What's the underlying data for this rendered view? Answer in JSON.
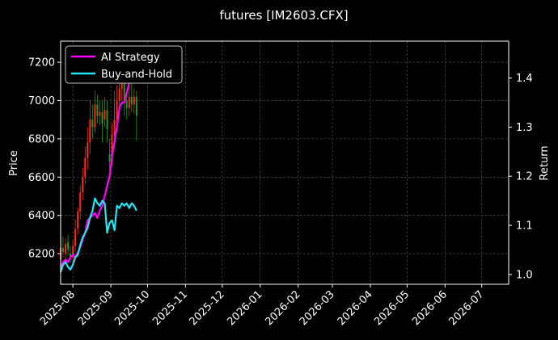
{
  "chart_data": {
    "type": "line",
    "title": "futures [IM2603.CFX]",
    "ylabel_left": "Price",
    "ylabel_right": "Return",
    "x_ticks": [
      "2025-08",
      "2025-09",
      "2025-10",
      "2025-11",
      "2025-12",
      "2026-01",
      "2026-02",
      "2026-03",
      "2026-04",
      "2026-05",
      "2026-06",
      "2026-07"
    ],
    "x_range": [
      "2025-07-22",
      "2026-07-23"
    ],
    "left_ticks": [
      6200,
      6400,
      6600,
      6800,
      7000,
      7200
    ],
    "left_ylim": [
      6040,
      7310
    ],
    "right_ticks": [
      "1.0",
      "1.1",
      "1.2",
      "1.3",
      "1.4"
    ],
    "right_ylim": [
      0.98,
      1.475
    ],
    "grid": true,
    "legend_position": "top-left",
    "colors": {
      "background": "#000000",
      "ai_strategy": "#ff00ff",
      "buy_and_hold": "#22e5f2",
      "candle_up": "#ff2a1a",
      "candle_down": "#1f9a1f",
      "grid": "#555555"
    },
    "legend": [
      {
        "label": "AI Strategy",
        "color": "#ff00ff"
      },
      {
        "label": "Buy-and-Hold",
        "color": "#22e5f2"
      }
    ],
    "series": [
      {
        "name": "AI Strategy",
        "axis": "right",
        "dates": [
          "2025-07-22",
          "2025-07-24",
          "2025-07-26",
          "2025-07-28",
          "2025-07-30",
          "2025-08-01",
          "2025-08-03",
          "2025-08-05",
          "2025-08-07",
          "2025-08-09",
          "2025-08-11",
          "2025-08-13",
          "2025-08-15",
          "2025-08-17",
          "2025-08-19",
          "2025-08-21",
          "2025-08-23",
          "2025-08-25",
          "2025-08-27",
          "2025-08-29",
          "2025-08-31",
          "2025-09-02",
          "2025-09-04",
          "2025-09-06",
          "2025-09-08",
          "2025-09-10",
          "2025-09-12",
          "2025-09-14",
          "2025-09-16",
          "2025-09-18",
          "2025-09-20"
        ],
        "values": [
          1.015,
          1.025,
          1.03,
          1.025,
          1.035,
          1.04,
          1.035,
          1.045,
          1.055,
          1.07,
          1.085,
          1.11,
          1.115,
          1.12,
          1.125,
          1.115,
          1.13,
          1.14,
          1.16,
          1.18,
          1.2,
          1.24,
          1.27,
          1.3,
          1.34,
          1.35,
          1.35,
          1.37,
          1.39,
          1.4,
          1.41
        ]
      },
      {
        "name": "Buy-and-Hold",
        "axis": "right",
        "dates": [
          "2025-07-22",
          "2025-07-24",
          "2025-07-26",
          "2025-07-28",
          "2025-07-30",
          "2025-08-01",
          "2025-08-03",
          "2025-08-05",
          "2025-08-07",
          "2025-08-09",
          "2025-08-11",
          "2025-08-13",
          "2025-08-15",
          "2025-08-17",
          "2025-08-19",
          "2025-08-21",
          "2025-08-23",
          "2025-08-25",
          "2025-08-27",
          "2025-08-29",
          "2025-08-31",
          "2025-09-02",
          "2025-09-04",
          "2025-09-06",
          "2025-09-08",
          "2025-09-10",
          "2025-09-12",
          "2025-09-14",
          "2025-09-16",
          "2025-09-18",
          "2025-09-20",
          "2025-09-22"
        ],
        "values": [
          1.005,
          1.02,
          1.025,
          1.015,
          1.01,
          1.02,
          1.035,
          1.04,
          1.06,
          1.075,
          1.085,
          1.095,
          1.115,
          1.13,
          1.155,
          1.145,
          1.14,
          1.15,
          1.145,
          1.085,
          1.105,
          1.11,
          1.09,
          1.14,
          1.135,
          1.145,
          1.14,
          1.145,
          1.135,
          1.145,
          1.14,
          1.13
        ]
      }
    ],
    "candles": {
      "axis": "left",
      "items": [
        {
          "date": "2025-07-22",
          "open": 6170,
          "close": 6230,
          "high": 6260,
          "low": 6140
        },
        {
          "date": "2025-07-24",
          "open": 6230,
          "close": 6210,
          "high": 6290,
          "low": 6180
        },
        {
          "date": "2025-07-26",
          "open": 6200,
          "close": 6250,
          "high": 6280,
          "low": 6170
        },
        {
          "date": "2025-07-28",
          "open": 6260,
          "close": 6220,
          "high": 6300,
          "low": 6190
        },
        {
          "date": "2025-07-30",
          "open": 6200,
          "close": 6180,
          "high": 6240,
          "low": 6150
        },
        {
          "date": "2025-08-01",
          "open": 6180,
          "close": 6240,
          "high": 6270,
          "low": 6160
        },
        {
          "date": "2025-08-03",
          "open": 6240,
          "close": 6330,
          "high": 6380,
          "low": 6210
        },
        {
          "date": "2025-08-05",
          "open": 6330,
          "close": 6420,
          "high": 6440,
          "low": 6300
        },
        {
          "date": "2025-08-07",
          "open": 6420,
          "close": 6520,
          "high": 6560,
          "low": 6380
        },
        {
          "date": "2025-08-09",
          "open": 6520,
          "close": 6600,
          "high": 6650,
          "low": 6480
        },
        {
          "date": "2025-08-11",
          "open": 6600,
          "close": 6700,
          "high": 6760,
          "low": 6560
        },
        {
          "date": "2025-08-13",
          "open": 6700,
          "close": 6780,
          "high": 6860,
          "low": 6640
        },
        {
          "date": "2025-08-15",
          "open": 6780,
          "close": 6900,
          "high": 7000,
          "low": 6720
        },
        {
          "date": "2025-08-17",
          "open": 6900,
          "close": 6860,
          "high": 6980,
          "low": 6800
        },
        {
          "date": "2025-08-19",
          "open": 6860,
          "close": 6980,
          "high": 7050,
          "low": 6830
        },
        {
          "date": "2025-08-21",
          "open": 6980,
          "close": 6920,
          "high": 7030,
          "low": 6880
        },
        {
          "date": "2025-08-23",
          "open": 6920,
          "close": 6940,
          "high": 7000,
          "low": 6870
        },
        {
          "date": "2025-08-25",
          "open": 6940,
          "close": 6880,
          "high": 7000,
          "low": 6780
        },
        {
          "date": "2025-08-27",
          "open": 6900,
          "close": 6950,
          "high": 7020,
          "low": 6860
        },
        {
          "date": "2025-08-29",
          "open": 6950,
          "close": 6850,
          "high": 7000,
          "low": 6780
        },
        {
          "date": "2025-08-31",
          "open": 6720,
          "close": 6680,
          "high": 6800,
          "low": 6640
        },
        {
          "date": "2025-09-02",
          "open": 6700,
          "close": 6820,
          "high": 6880,
          "low": 6660
        },
        {
          "date": "2025-09-04",
          "open": 6820,
          "close": 6900,
          "high": 7050,
          "low": 6780
        },
        {
          "date": "2025-09-06",
          "open": 6900,
          "close": 7000,
          "high": 7080,
          "low": 6860
        },
        {
          "date": "2025-09-08",
          "open": 7000,
          "close": 7060,
          "high": 7150,
          "low": 6940
        },
        {
          "date": "2025-09-10",
          "open": 7060,
          "close": 7120,
          "high": 7200,
          "low": 7000
        },
        {
          "date": "2025-09-12",
          "open": 7100,
          "close": 7000,
          "high": 7160,
          "low": 6920
        },
        {
          "date": "2025-09-14",
          "open": 7000,
          "close": 6960,
          "high": 7060,
          "low": 6900
        },
        {
          "date": "2025-09-16",
          "open": 6960,
          "close": 7020,
          "high": 7080,
          "low": 6920
        },
        {
          "date": "2025-09-18",
          "open": 7020,
          "close": 6980,
          "high": 7100,
          "low": 6940
        },
        {
          "date": "2025-09-20",
          "open": 6980,
          "close": 7020,
          "high": 7060,
          "low": 6930
        },
        {
          "date": "2025-09-22",
          "open": 7020,
          "close": 6920,
          "high": 7050,
          "low": 6790
        }
      ]
    }
  }
}
